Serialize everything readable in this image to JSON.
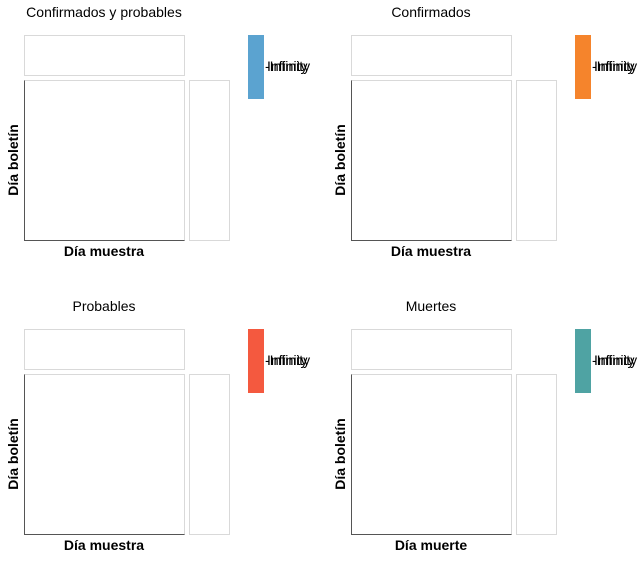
{
  "chart_data": [
    {
      "type": "heatmap",
      "title": "Confirmados y probables",
      "xlabel": "Día muestra",
      "ylabel": "Día boletín",
      "legend": {
        "labels": [
          "Infinity",
          "-Infinity"
        ],
        "color": "#5ba3d0",
        "placement": "right"
      },
      "values": []
    },
    {
      "type": "heatmap",
      "title": "Confirmados",
      "xlabel": "Día muestra",
      "ylabel": "Día boletín",
      "legend": {
        "labels": [
          "Infinity",
          "-Infinity"
        ],
        "color": "#f5842c",
        "placement": "right"
      },
      "values": []
    },
    {
      "type": "heatmap",
      "title": "Probables",
      "xlabel": "Día muestra",
      "ylabel": "Día boletín",
      "legend": {
        "labels": [
          "Infinity",
          "-Infinity"
        ],
        "color": "#f4593f",
        "placement": "right"
      },
      "values": []
    },
    {
      "type": "heatmap",
      "title": "Muertes",
      "xlabel": "Día muerte",
      "ylabel": "Día boletín",
      "legend": {
        "labels": [
          "Infinity",
          "-Infinity"
        ],
        "color": "#4fa3a3",
        "placement": "right"
      },
      "values": []
    }
  ]
}
